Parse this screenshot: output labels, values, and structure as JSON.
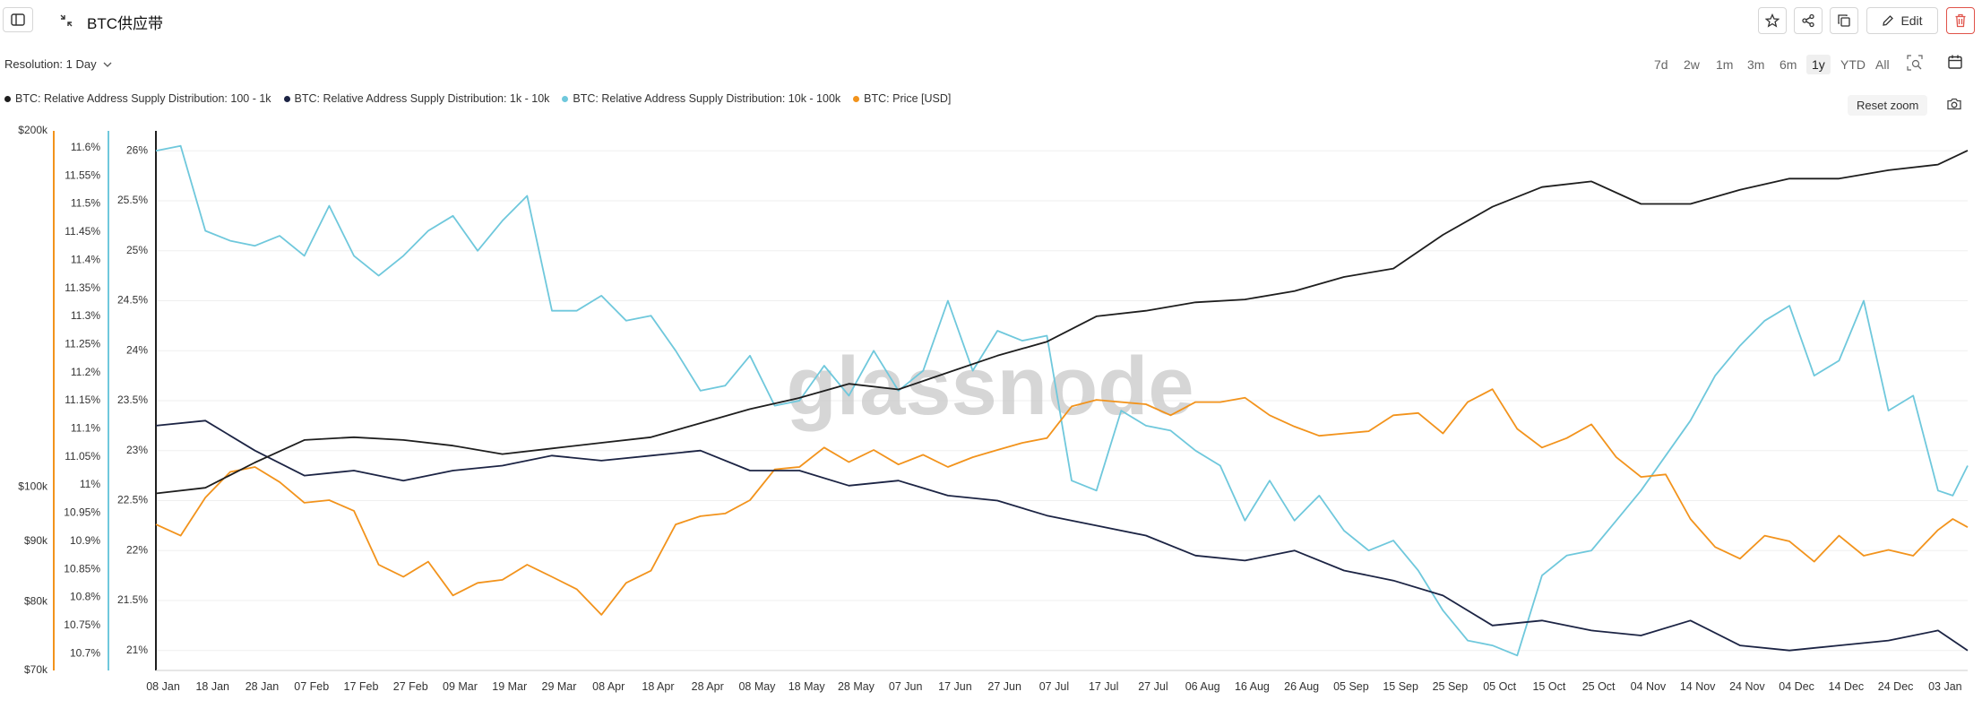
{
  "header": {
    "title": "BTC供应带",
    "edit_label": "Edit",
    "icons": [
      "sidebar-toggle-icon",
      "collapse-icon",
      "star-icon",
      "share-icon",
      "copy-icon",
      "pencil-icon",
      "trash-icon"
    ]
  },
  "toolbar": {
    "resolution_label": "Resolution: 1 Day",
    "ranges": [
      "7d",
      "2w",
      "1m",
      "3m",
      "6m",
      "1y",
      "YTD",
      "All"
    ],
    "active_range": "1y",
    "reset_zoom": "Reset zoom",
    "icons": [
      "zoom-select-icon",
      "calendar-icon",
      "camera-icon"
    ]
  },
  "watermark": "glassnode",
  "colors": {
    "s100_1k": "#1e1e1e",
    "s1k_10k": "#1c2444",
    "s10k_100k": "#6fc8dc",
    "price": "#f2931c"
  },
  "chart_data": {
    "type": "line",
    "x_ticks": [
      "08 Jan",
      "18 Jan",
      "28 Jan",
      "07 Feb",
      "17 Feb",
      "27 Feb",
      "09 Mar",
      "19 Mar",
      "29 Mar",
      "08 Apr",
      "18 Apr",
      "28 Apr",
      "08 May",
      "18 May",
      "28 May",
      "07 Jun",
      "17 Jun",
      "27 Jun",
      "07 Jul",
      "17 Jul",
      "27 Jul",
      "06 Aug",
      "16 Aug",
      "26 Aug",
      "05 Sep",
      "15 Sep",
      "25 Sep",
      "05 Oct",
      "15 Oct",
      "25 Oct",
      "04 Nov",
      "14 Nov",
      "24 Nov",
      "04 Dec",
      "14 Dec",
      "24 Dec",
      "03 Jan"
    ],
    "x_ticks_days": [
      0,
      10,
      20,
      30,
      40,
      50,
      60,
      70,
      80,
      90,
      100,
      110,
      120,
      130,
      140,
      150,
      160,
      170,
      180,
      190,
      200,
      210,
      220,
      230,
      240,
      250,
      260,
      270,
      280,
      290,
      300,
      310,
      320,
      330,
      340,
      350,
      360
    ],
    "x_range_days": [
      0,
      366
    ],
    "axes": {
      "price": {
        "ticks": [
          "$70k",
          "$80k",
          "$90k",
          "$100k",
          "$200k"
        ],
        "scale": "log",
        "range": [
          70000,
          200000
        ],
        "tick_values": [
          70000,
          80000,
          90000,
          100000,
          200000
        ]
      },
      "share_small": {
        "ticks": [
          "10.7%",
          "10.75%",
          "10.8%",
          "10.85%",
          "10.9%",
          "10.95%",
          "11%",
          "11.05%",
          "11.1%",
          "11.15%",
          "11.2%",
          "11.25%",
          "11.3%",
          "11.35%",
          "11.4%",
          "11.45%",
          "11.5%",
          "11.55%",
          "11.6%"
        ],
        "range": [
          10.67,
          11.63
        ]
      },
      "share_large": {
        "ticks": [
          "21%",
          "21.5%",
          "22%",
          "22.5%",
          "23%",
          "23.5%",
          "24%",
          "24.5%",
          "25%",
          "25.5%",
          "26%"
        ],
        "range": [
          20.8,
          26.2
        ]
      }
    },
    "series": [
      {
        "name": "BTC: Relative Address Supply Distribution: 100 - 1k",
        "axis": "share_small",
        "color_key": "s100_1k",
        "points": [
          [
            0,
            10.985
          ],
          [
            10,
            10.995
          ],
          [
            20,
            11.04
          ],
          [
            30,
            11.08
          ],
          [
            40,
            11.085
          ],
          [
            50,
            11.08
          ],
          [
            60,
            11.07
          ],
          [
            70,
            11.055
          ],
          [
            80,
            11.065
          ],
          [
            90,
            11.075
          ],
          [
            100,
            11.085
          ],
          [
            110,
            11.11
          ],
          [
            120,
            11.135
          ],
          [
            130,
            11.155
          ],
          [
            140,
            11.18
          ],
          [
            150,
            11.17
          ],
          [
            160,
            11.2
          ],
          [
            170,
            11.23
          ],
          [
            180,
            11.255
          ],
          [
            190,
            11.3
          ],
          [
            200,
            11.31
          ],
          [
            210,
            11.325
          ],
          [
            220,
            11.33
          ],
          [
            230,
            11.345
          ],
          [
            240,
            11.37
          ],
          [
            250,
            11.385
          ],
          [
            260,
            11.445
          ],
          [
            270,
            11.495
          ],
          [
            280,
            11.53
          ],
          [
            290,
            11.54
          ],
          [
            300,
            11.5
          ],
          [
            310,
            11.5
          ],
          [
            320,
            11.525
          ],
          [
            330,
            11.545
          ],
          [
            340,
            11.545
          ],
          [
            350,
            11.56
          ],
          [
            360,
            11.57
          ],
          [
            366,
            11.595
          ]
        ]
      },
      {
        "name": "BTC: Relative Address Supply Distribution: 1k - 10k",
        "axis": "share_large",
        "color_key": "s1k_10k",
        "points": [
          [
            0,
            23.25
          ],
          [
            10,
            23.3
          ],
          [
            20,
            23.0
          ],
          [
            30,
            22.75
          ],
          [
            40,
            22.8
          ],
          [
            50,
            22.7
          ],
          [
            60,
            22.8
          ],
          [
            70,
            22.85
          ],
          [
            80,
            22.95
          ],
          [
            90,
            22.9
          ],
          [
            100,
            22.95
          ],
          [
            110,
            23.0
          ],
          [
            120,
            22.8
          ],
          [
            130,
            22.8
          ],
          [
            140,
            22.65
          ],
          [
            150,
            22.7
          ],
          [
            160,
            22.55
          ],
          [
            170,
            22.5
          ],
          [
            180,
            22.35
          ],
          [
            190,
            22.25
          ],
          [
            200,
            22.15
          ],
          [
            210,
            21.95
          ],
          [
            220,
            21.9
          ],
          [
            230,
            22.0
          ],
          [
            240,
            21.8
          ],
          [
            250,
            21.7
          ],
          [
            260,
            21.55
          ],
          [
            270,
            21.25
          ],
          [
            280,
            21.3
          ],
          [
            290,
            21.2
          ],
          [
            300,
            21.15
          ],
          [
            310,
            21.3
          ],
          [
            320,
            21.05
          ],
          [
            330,
            21.0
          ],
          [
            340,
            21.05
          ],
          [
            350,
            21.1
          ],
          [
            360,
            21.2
          ],
          [
            366,
            21.0
          ]
        ]
      },
      {
        "name": "BTC: Relative Address Supply Distribution: 10k - 100k",
        "axis": "share_large",
        "color_key": "s10k_100k",
        "points": [
          [
            0,
            26.0
          ],
          [
            5,
            26.05
          ],
          [
            10,
            25.2
          ],
          [
            15,
            25.1
          ],
          [
            20,
            25.05
          ],
          [
            25,
            25.15
          ],
          [
            30,
            24.95
          ],
          [
            35,
            25.45
          ],
          [
            40,
            24.95
          ],
          [
            45,
            24.75
          ],
          [
            50,
            24.95
          ],
          [
            55,
            25.2
          ],
          [
            60,
            25.35
          ],
          [
            65,
            25.0
          ],
          [
            70,
            25.3
          ],
          [
            75,
            25.55
          ],
          [
            80,
            24.4
          ],
          [
            85,
            24.4
          ],
          [
            90,
            24.55
          ],
          [
            95,
            24.3
          ],
          [
            100,
            24.35
          ],
          [
            105,
            24.0
          ],
          [
            110,
            23.6
          ],
          [
            115,
            23.65
          ],
          [
            120,
            23.95
          ],
          [
            125,
            23.45
          ],
          [
            130,
            23.5
          ],
          [
            135,
            23.85
          ],
          [
            140,
            23.55
          ],
          [
            145,
            24.0
          ],
          [
            150,
            23.6
          ],
          [
            155,
            23.8
          ],
          [
            160,
            24.5
          ],
          [
            165,
            23.8
          ],
          [
            170,
            24.2
          ],
          [
            175,
            24.1
          ],
          [
            180,
            24.15
          ],
          [
            185,
            22.7
          ],
          [
            190,
            22.6
          ],
          [
            195,
            23.4
          ],
          [
            200,
            23.25
          ],
          [
            205,
            23.2
          ],
          [
            210,
            23.0
          ],
          [
            215,
            22.85
          ],
          [
            220,
            22.3
          ],
          [
            225,
            22.7
          ],
          [
            230,
            22.3
          ],
          [
            235,
            22.55
          ],
          [
            240,
            22.2
          ],
          [
            245,
            22.0
          ],
          [
            250,
            22.1
          ],
          [
            255,
            21.8
          ],
          [
            260,
            21.4
          ],
          [
            265,
            21.1
          ],
          [
            270,
            21.05
          ],
          [
            275,
            20.95
          ],
          [
            280,
            21.75
          ],
          [
            285,
            21.95
          ],
          [
            290,
            22.0
          ],
          [
            295,
            22.3
          ],
          [
            300,
            22.6
          ],
          [
            305,
            22.95
          ],
          [
            310,
            23.3
          ],
          [
            315,
            23.75
          ],
          [
            320,
            24.05
          ],
          [
            325,
            24.3
          ],
          [
            330,
            24.45
          ],
          [
            335,
            23.75
          ],
          [
            340,
            23.9
          ],
          [
            345,
            24.5
          ],
          [
            350,
            23.4
          ],
          [
            355,
            23.55
          ],
          [
            360,
            22.6
          ],
          [
            363,
            22.55
          ],
          [
            366,
            22.85
          ]
        ]
      },
      {
        "name": "BTC: Price [USD]",
        "axis": "price",
        "color_key": "price",
        "points": [
          [
            0,
            93000
          ],
          [
            5,
            91000
          ],
          [
            10,
            98000
          ],
          [
            15,
            103000
          ],
          [
            20,
            104000
          ],
          [
            25,
            101000
          ],
          [
            30,
            97000
          ],
          [
            35,
            97500
          ],
          [
            40,
            95500
          ],
          [
            45,
            86000
          ],
          [
            50,
            84000
          ],
          [
            55,
            86500
          ],
          [
            60,
            81000
          ],
          [
            65,
            83000
          ],
          [
            70,
            83500
          ],
          [
            75,
            86000
          ],
          [
            80,
            84000
          ],
          [
            85,
            82000
          ],
          [
            90,
            78000
          ],
          [
            95,
            83000
          ],
          [
            100,
            85000
          ],
          [
            105,
            93000
          ],
          [
            110,
            94500
          ],
          [
            115,
            95000
          ],
          [
            120,
            97500
          ],
          [
            125,
            103500
          ],
          [
            130,
            104000
          ],
          [
            135,
            108000
          ],
          [
            140,
            105000
          ],
          [
            145,
            107500
          ],
          [
            150,
            104500
          ],
          [
            155,
            106500
          ],
          [
            160,
            104000
          ],
          [
            165,
            106000
          ],
          [
            170,
            107500
          ],
          [
            175,
            109000
          ],
          [
            180,
            110000
          ],
          [
            185,
            117000
          ],
          [
            190,
            118500
          ],
          [
            195,
            118000
          ],
          [
            200,
            117500
          ],
          [
            205,
            115000
          ],
          [
            210,
            118000
          ],
          [
            215,
            118000
          ],
          [
            220,
            119000
          ],
          [
            225,
            115000
          ],
          [
            230,
            112500
          ],
          [
            235,
            110500
          ],
          [
            240,
            111000
          ],
          [
            245,
            111500
          ],
          [
            250,
            115000
          ],
          [
            255,
            115500
          ],
          [
            260,
            111000
          ],
          [
            265,
            118000
          ],
          [
            270,
            121000
          ],
          [
            275,
            112000
          ],
          [
            280,
            108000
          ],
          [
            285,
            110000
          ],
          [
            290,
            113000
          ],
          [
            295,
            106000
          ],
          [
            300,
            102000
          ],
          [
            305,
            102500
          ],
          [
            310,
            94000
          ],
          [
            315,
            89000
          ],
          [
            320,
            87000
          ],
          [
            325,
            91000
          ],
          [
            330,
            90000
          ],
          [
            335,
            86500
          ],
          [
            340,
            91000
          ],
          [
            345,
            87500
          ],
          [
            350,
            88500
          ],
          [
            355,
            87500
          ],
          [
            360,
            92000
          ],
          [
            363,
            94000
          ],
          [
            366,
            92500
          ]
        ]
      }
    ],
    "grid": true,
    "legend_placement": "top-left"
  }
}
